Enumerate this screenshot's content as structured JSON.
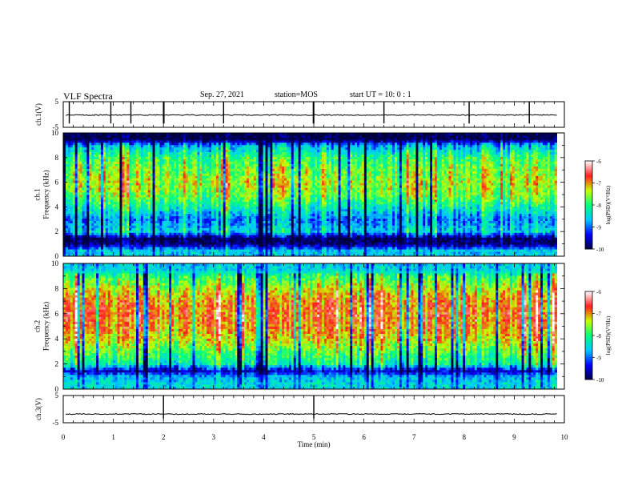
{
  "header": {
    "title": "VLF Spectra",
    "date": "Sep. 27, 2021",
    "station": "station=MOS",
    "start": "start UT =  10: 0  : 1"
  },
  "chart_data": [
    {
      "type": "line",
      "name": "ch1-waveform",
      "ylabel": "ch.1(V)",
      "ylim": [
        -5,
        5
      ],
      "yticks": [
        "5",
        "-5"
      ],
      "xlim": [
        0,
        10
      ],
      "baseline": -0.2,
      "spike_times": [
        0.12,
        0.95,
        1.35,
        2.0,
        2.01,
        3.2,
        4.99,
        5.0,
        6.4,
        8.1,
        9.3
      ]
    },
    {
      "type": "heatmap",
      "name": "ch1-spectrogram",
      "ylabel": "ch.1\nFrequency (kHz)",
      "ylim": [
        0,
        10
      ],
      "yticks": [
        "0",
        "2",
        "4",
        "6",
        "8",
        "10"
      ],
      "xlim": [
        0,
        9.85
      ],
      "colorbar": {
        "label": "log(PSD)(V²/Hz)",
        "range": [
          -10,
          -6
        ],
        "ticks": [
          "-6",
          "-7",
          "-8",
          "-9",
          "-10"
        ]
      },
      "freq_bands_kHz": [
        0.5,
        1.0,
        1.5,
        2.0,
        3.0,
        4.0,
        5.0,
        6.0,
        7.0,
        8.0,
        9.0,
        9.5,
        10.0
      ],
      "mean_log_psd": [
        -8.6,
        -9.8,
        -9.9,
        -8.5,
        -8.9,
        -8.2,
        -7.6,
        -7.4,
        -7.6,
        -7.9,
        -8.7,
        -10.0,
        -10.0
      ]
    },
    {
      "type": "heatmap",
      "name": "ch2-spectrogram",
      "ylabel": "ch.2\nFrequency (kHz)",
      "ylim": [
        0,
        10
      ],
      "yticks": [
        "0",
        "2",
        "4",
        "6",
        "8",
        "10"
      ],
      "xlim": [
        0,
        9.85
      ],
      "colorbar": {
        "label": "log(PSD)(V²/Hz)",
        "range": [
          -10,
          -6
        ],
        "ticks": [
          "-6",
          "-7",
          "-8",
          "-9",
          "-10"
        ]
      },
      "freq_bands_kHz": [
        0.5,
        1.0,
        1.5,
        2.0,
        3.0,
        4.0,
        5.0,
        6.0,
        7.0,
        8.0,
        9.0,
        9.5,
        10.0
      ],
      "mean_log_psd": [
        -8.5,
        -8.7,
        -9.6,
        -8.3,
        -7.8,
        -7.3,
        -7.0,
        -6.9,
        -7.0,
        -7.4,
        -8.0,
        -8.5,
        -8.6
      ]
    },
    {
      "type": "line",
      "name": "ch3-waveform",
      "ylabel": "ch.3(V)",
      "ylim": [
        -5,
        5
      ],
      "yticks": [
        "5",
        "-5"
      ],
      "xlim": [
        0,
        10
      ],
      "baseline": -1.8,
      "spike_times": [
        2.0,
        5.0
      ]
    }
  ],
  "x_axis": {
    "label": "Time (min)",
    "range": [
      0,
      10
    ],
    "ticks": [
      "0",
      "1",
      "2",
      "3",
      "4",
      "5",
      "6",
      "7",
      "8",
      "9",
      "10"
    ]
  },
  "colors": {
    "spectrum_scale": [
      "#000040",
      "#0000ff",
      "#00c8ff",
      "#00ff80",
      "#c8ff00",
      "#ff1e1e",
      "#ffffff"
    ]
  }
}
